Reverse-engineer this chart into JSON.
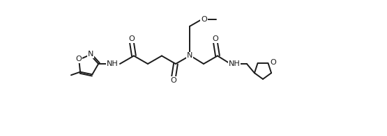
{
  "background_color": "#ffffff",
  "line_color": "#1a1a1a",
  "line_width": 1.4,
  "font_size": 8.0,
  "figsize": [
    5.55,
    1.96
  ],
  "dpi": 100,
  "xlim": [
    0,
    5.55
  ],
  "ylim": [
    0,
    1.96
  ]
}
